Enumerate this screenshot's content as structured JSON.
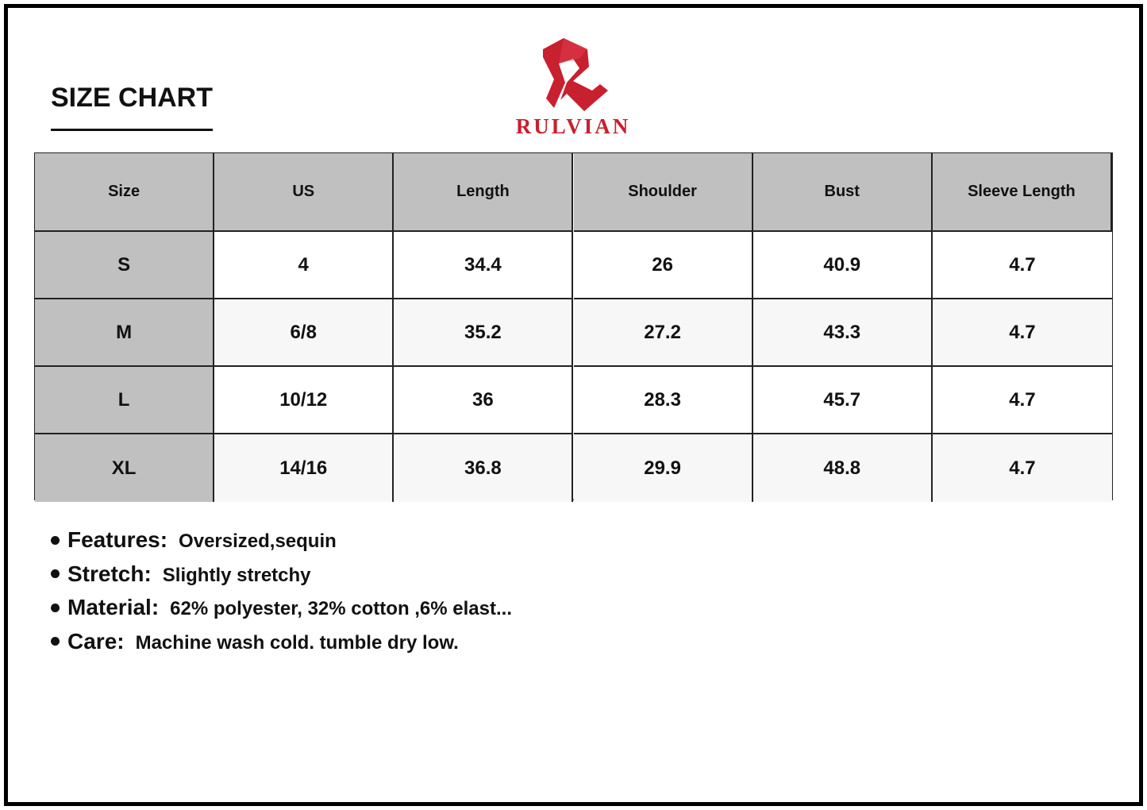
{
  "header": {
    "title": "SIZE CHART",
    "brand": "RULVIAN"
  },
  "table": {
    "headers": [
      "Size",
      "US",
      "Length",
      "Shoulder",
      "Bust",
      "Sleeve Length"
    ],
    "rows": [
      [
        "S",
        "4",
        "34.4",
        "26",
        "40.9",
        "4.7"
      ],
      [
        "M",
        "6/8",
        "35.2",
        "27.2",
        "43.3",
        "4.7"
      ],
      [
        "L",
        "10/12",
        "36",
        "28.3",
        "45.7",
        "4.7"
      ],
      [
        "XL",
        "14/16",
        "36.8",
        "29.9",
        "48.8",
        "4.7"
      ]
    ]
  },
  "details": [
    {
      "label": "Features:",
      "text": "Oversized,sequin"
    },
    {
      "label": "Stretch:",
      "text": "Slightly stretchy"
    },
    {
      "label": "Material:",
      "text": "62% polyester, 32% cotton ,6% elast..."
    },
    {
      "label": "Care:",
      "text": "Machine wash cold. tumble dry low."
    }
  ]
}
